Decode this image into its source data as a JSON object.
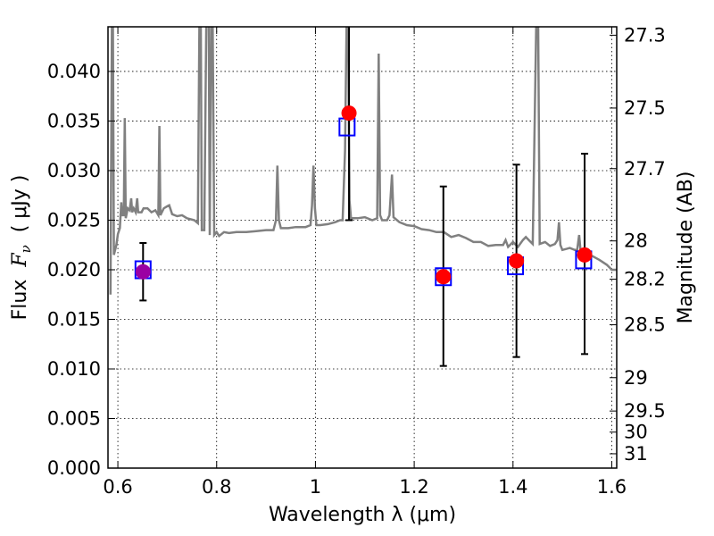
{
  "chart_data": {
    "type": "scatter",
    "xlabel": "Wavelength  λ (μm)",
    "ylabel_prefix": "Flux  ",
    "ylabel_symbol": "F",
    "ylabel_sub": "ν",
    "ylabel_suffix": "  ( μJy )",
    "ylabel_right": "Magnitude (AB)",
    "xlim": [
      0.58,
      1.61
    ],
    "ylim": [
      0.0,
      0.0445
    ],
    "grid": true,
    "x_ticks": [
      {
        "value": 0.6,
        "label": "0.6"
      },
      {
        "value": 0.8,
        "label": "0.8"
      },
      {
        "value": 1.0,
        "label": "1"
      },
      {
        "value": 1.2,
        "label": "1.2"
      },
      {
        "value": 1.4,
        "label": "1.4"
      },
      {
        "value": 1.6,
        "label": "1.6"
      }
    ],
    "y_ticks": [
      {
        "value": 0.0,
        "label": "0.000"
      },
      {
        "value": 0.005,
        "label": "0.005"
      },
      {
        "value": 0.01,
        "label": "0.010"
      },
      {
        "value": 0.015,
        "label": "0.015"
      },
      {
        "value": 0.02,
        "label": "0.020"
      },
      {
        "value": 0.025,
        "label": "0.025"
      },
      {
        "value": 0.03,
        "label": "0.030"
      },
      {
        "value": 0.035,
        "label": "0.035"
      },
      {
        "value": 0.04,
        "label": "0.040"
      }
    ],
    "right_ticks": [
      {
        "mag": 27.3,
        "label": "27.3"
      },
      {
        "mag": 27.5,
        "label": "27.5"
      },
      {
        "mag": 27.7,
        "label": "27.7"
      },
      {
        "mag": 28.0,
        "label": "28"
      },
      {
        "mag": 28.2,
        "label": "28.2"
      },
      {
        "mag": 28.5,
        "label": "28.5"
      },
      {
        "mag": 29.0,
        "label": "29"
      },
      {
        "mag": 29.5,
        "label": "29.5"
      },
      {
        "mag": 30.0,
        "label": "30"
      },
      {
        "mag": 31.0,
        "label": "31"
      }
    ],
    "model_spectrum": {
      "color": "#808080",
      "points": [
        [
          0.585,
          0.0175
        ],
        [
          0.588,
          0.0446
        ],
        [
          0.59,
          0.0446
        ],
        [
          0.592,
          0.0215
        ],
        [
          0.597,
          0.0225
        ],
        [
          0.6,
          0.0236
        ],
        [
          0.604,
          0.0242
        ],
        [
          0.607,
          0.0268
        ],
        [
          0.609,
          0.0255
        ],
        [
          0.612,
          0.0255
        ],
        [
          0.614,
          0.0353
        ],
        [
          0.616,
          0.0252
        ],
        [
          0.62,
          0.0262
        ],
        [
          0.624,
          0.026
        ],
        [
          0.627,
          0.0272
        ],
        [
          0.629,
          0.0258
        ],
        [
          0.632,
          0.0262
        ],
        [
          0.636,
          0.0258
        ],
        [
          0.639,
          0.0272
        ],
        [
          0.641,
          0.0258
        ],
        [
          0.648,
          0.0258
        ],
        [
          0.652,
          0.0262
        ],
        [
          0.656,
          0.0262
        ],
        [
          0.66,
          0.0262
        ],
        [
          0.668,
          0.0258
        ],
        [
          0.676,
          0.026
        ],
        [
          0.682,
          0.0255
        ],
        [
          0.684,
          0.0345
        ],
        [
          0.686,
          0.0255
        ],
        [
          0.693,
          0.0262
        ],
        [
          0.7,
          0.0264
        ],
        [
          0.704,
          0.0265
        ],
        [
          0.71,
          0.0256
        ],
        [
          0.72,
          0.0254
        ],
        [
          0.73,
          0.0255
        ],
        [
          0.74,
          0.0252
        ],
        [
          0.755,
          0.025
        ],
        [
          0.762,
          0.0247
        ],
        [
          0.765,
          0.0446
        ],
        [
          0.768,
          0.0446
        ],
        [
          0.77,
          0.024
        ],
        [
          0.775,
          0.024
        ],
        [
          0.779,
          0.0446
        ],
        [
          0.784,
          0.0446
        ],
        [
          0.786,
          0.0235
        ],
        [
          0.789,
          0.0446
        ],
        [
          0.792,
          0.0446
        ],
        [
          0.795,
          0.0235
        ],
        [
          0.8,
          0.0238
        ],
        [
          0.805,
          0.0234
        ],
        [
          0.815,
          0.0238
        ],
        [
          0.825,
          0.0237
        ],
        [
          0.84,
          0.0238
        ],
        [
          0.86,
          0.0238
        ],
        [
          0.88,
          0.0239
        ],
        [
          0.9,
          0.024
        ],
        [
          0.915,
          0.024
        ],
        [
          0.92,
          0.025
        ],
        [
          0.923,
          0.0305
        ],
        [
          0.926,
          0.025
        ],
        [
          0.93,
          0.0242
        ],
        [
          0.945,
          0.0242
        ],
        [
          0.96,
          0.0243
        ],
        [
          0.98,
          0.0243
        ],
        [
          0.99,
          0.0245
        ],
        [
          0.993,
          0.0265
        ],
        [
          0.996,
          0.0305
        ],
        [
          0.999,
          0.0262
        ],
        [
          1.002,
          0.0245
        ],
        [
          1.01,
          0.0245
        ],
        [
          1.025,
          0.0246
        ],
        [
          1.04,
          0.0248
        ],
        [
          1.05,
          0.025
        ],
        [
          1.055,
          0.025
        ],
        [
          1.06,
          0.032
        ],
        [
          1.063,
          0.0446
        ],
        [
          1.066,
          0.0446
        ],
        [
          1.069,
          0.027
        ],
        [
          1.072,
          0.0252
        ],
        [
          1.085,
          0.0252
        ],
        [
          1.1,
          0.0253
        ],
        [
          1.115,
          0.025
        ],
        [
          1.125,
          0.0252
        ],
        [
          1.128,
          0.0418
        ],
        [
          1.131,
          0.0255
        ],
        [
          1.135,
          0.025
        ],
        [
          1.145,
          0.025
        ],
        [
          1.15,
          0.0255
        ],
        [
          1.155,
          0.0296
        ],
        [
          1.158,
          0.0253
        ],
        [
          1.17,
          0.0248
        ],
        [
          1.185,
          0.0245
        ],
        [
          1.2,
          0.0244
        ],
        [
          1.215,
          0.0241
        ],
        [
          1.23,
          0.024
        ],
        [
          1.245,
          0.0238
        ],
        [
          1.26,
          0.0238
        ],
        [
          1.275,
          0.0233
        ],
        [
          1.29,
          0.0235
        ],
        [
          1.305,
          0.0232
        ],
        [
          1.32,
          0.0228
        ],
        [
          1.335,
          0.0228
        ],
        [
          1.35,
          0.0224
        ],
        [
          1.365,
          0.0225
        ],
        [
          1.38,
          0.0225
        ],
        [
          1.385,
          0.023
        ],
        [
          1.39,
          0.0223
        ],
        [
          1.4,
          0.0228
        ],
        [
          1.41,
          0.0223
        ],
        [
          1.42,
          0.023
        ],
        [
          1.426,
          0.0233
        ],
        [
          1.432,
          0.023
        ],
        [
          1.44,
          0.0226
        ],
        [
          1.447,
          0.0446
        ],
        [
          1.451,
          0.0446
        ],
        [
          1.454,
          0.0226
        ],
        [
          1.465,
          0.0228
        ],
        [
          1.475,
          0.0224
        ],
        [
          1.485,
          0.0226
        ],
        [
          1.49,
          0.023
        ],
        [
          1.493,
          0.0248
        ],
        [
          1.496,
          0.0225
        ],
        [
          1.5,
          0.022
        ],
        [
          1.515,
          0.0222
        ],
        [
          1.525,
          0.022
        ],
        [
          1.53,
          0.022
        ],
        [
          1.534,
          0.0235
        ],
        [
          1.537,
          0.0218
        ],
        [
          1.545,
          0.0216
        ],
        [
          1.56,
          0.0214
        ],
        [
          1.575,
          0.021
        ],
        [
          1.59,
          0.0205
        ],
        [
          1.6,
          0.02
        ],
        [
          1.61,
          0.02
        ]
      ]
    },
    "model_photometry": {
      "marker": "open-square",
      "color": "#0000ff",
      "points": [
        [
          0.651,
          0.02
        ],
        [
          1.064,
          0.0344
        ],
        [
          1.259,
          0.0193
        ],
        [
          1.405,
          0.0204
        ],
        [
          1.543,
          0.021
        ]
      ]
    },
    "observed": {
      "color": "#ff0000",
      "first_point_color": "#9b00a3",
      "points": [
        {
          "x": 0.651,
          "y": 0.0198,
          "lo": 0.0169,
          "hi": 0.0227
        },
        {
          "x": 1.068,
          "y": 0.0358,
          "lo": 0.025,
          "hi": 0.0446
        },
        {
          "x": 1.259,
          "y": 0.0193,
          "lo": 0.0103,
          "hi": 0.0284
        },
        {
          "x": 1.407,
          "y": 0.0209,
          "lo": 0.0112,
          "hi": 0.0306
        },
        {
          "x": 1.545,
          "y": 0.0215,
          "lo": 0.0115,
          "hi": 0.0317
        }
      ]
    }
  }
}
